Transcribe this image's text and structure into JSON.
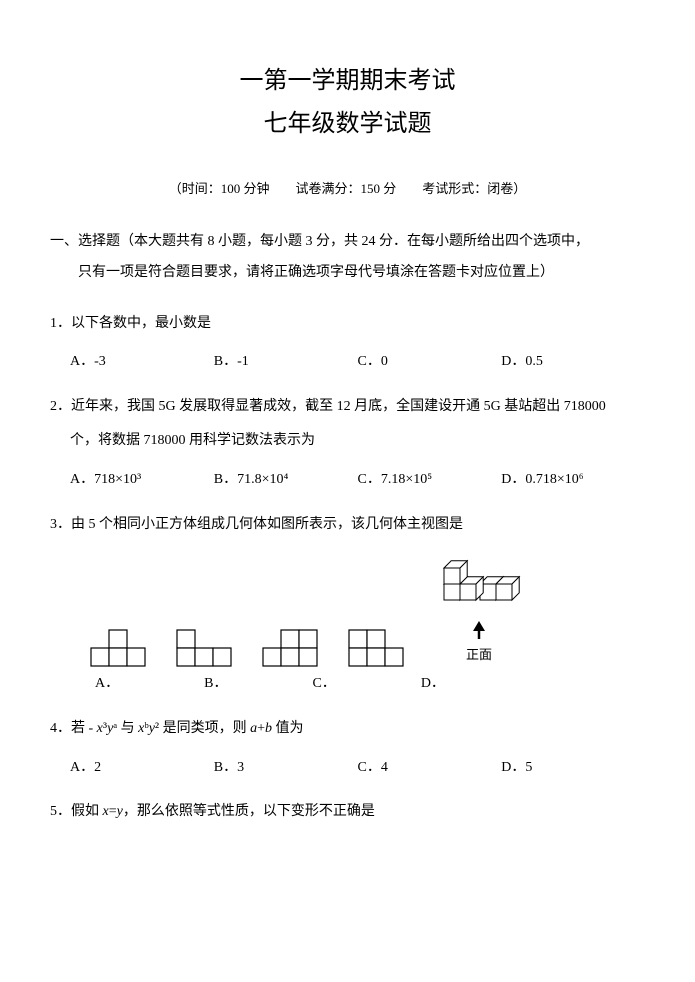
{
  "title": {
    "main": "一第一学期期末考试",
    "sub": "七年级数学试题"
  },
  "meta": "（时间：100 分钟　　试卷满分：150 分　　考试形式：闭卷）",
  "section1": {
    "heading_line1": "一、选择题（本大题共有 8 小题，每小题 3 分，共 24 分．在每小题所给出四个选项中，",
    "heading_line2": "只有一项是符合题目要求，请将正确选项字母代号填涂在答题卡对应位置上）"
  },
  "q1": {
    "text": "1．以下各数中，最小数是",
    "opts": {
      "A": "A．-3",
      "B": "B．-1",
      "C": "C．0",
      "D": "D．0.5"
    }
  },
  "q2": {
    "line1": "2．近年来，我国 5G 发展取得显著成效，截至 12 月底，全国建设开通 5G 基站超出 718000",
    "line2": "个，将数据 718000 用科学记数法表示为",
    "opts": {
      "A": "A．718×10³",
      "B": "B．71.8×10⁴",
      "C": "C．7.18×10⁵",
      "D": "D．0.718×10⁶"
    }
  },
  "q3": {
    "text": "3．由 5 个相同小正方体组成几何体如图所表示，该几何体主视图是",
    "labels": {
      "A": "A．",
      "B": "B．",
      "C": "C．",
      "D": "D．"
    },
    "iso_caption": "正面",
    "cell": 18,
    "stroke": "#000000",
    "fill": "#ffffff",
    "shapes": {
      "A": [
        [
          0,
          1
        ],
        [
          1,
          0
        ],
        [
          1,
          1
        ],
        [
          2,
          1
        ]
      ],
      "B": [
        [
          0,
          0
        ],
        [
          0,
          1
        ],
        [
          1,
          1
        ],
        [
          2,
          1
        ]
      ],
      "C": [
        [
          1,
          0
        ],
        [
          0,
          1
        ],
        [
          1,
          1
        ],
        [
          2,
          0
        ],
        [
          2,
          1
        ]
      ],
      "D": [
        [
          0,
          0
        ],
        [
          0,
          1
        ],
        [
          1,
          0
        ],
        [
          1,
          1
        ],
        [
          2,
          1
        ]
      ]
    }
  },
  "q4": {
    "text_html": "4．若 - <i>x</i>³<i>y</i>ᵃ 与 <i>x</i>ᵇ<i>y</i>² 是同类项，则 <i>a</i>+<i>b</i> 值为",
    "opts": {
      "A": "A．2",
      "B": "B．3",
      "C": "C．4",
      "D": "D．5"
    }
  },
  "q5": {
    "text_html": "5．假如 <i>x</i>=<i>y</i>，那么依照等式性质，以下变形不正确是"
  }
}
